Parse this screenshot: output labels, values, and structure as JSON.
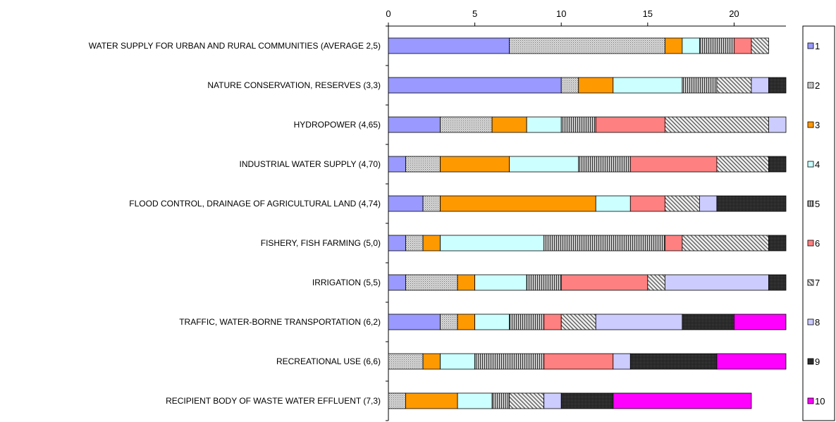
{
  "chart_data": {
    "type": "bar",
    "orientation": "horizontal",
    "stacked": true,
    "title": "",
    "xlabel": "",
    "ylabel": "",
    "xlim": [
      0,
      23
    ],
    "x_ticks": [
      0,
      5,
      10,
      15,
      20
    ],
    "grid": false,
    "legend_position": "right",
    "categories": [
      "WATER SUPPLY FOR URBAN AND RURAL COMMUNITIES (AVERAGE 2,5)",
      "NATURE CONSERVATION, RESERVES (3,3)",
      "HYDROPOWER (4,65)",
      "INDUSTRIAL WATER SUPPLY (4,70)",
      "FLOOD CONTROL, DRAINAGE OF AGRICULTURAL LAND (4,74)",
      "FISHERY, FISH FARMING (5,0)",
      "IRRIGATION (5,5)",
      "TRAFFIC, WATER-BORNE TRANSPORTATION (6,2)",
      "RECREATIONAL USE (6,6)",
      "RECIPIENT BODY OF WASTE WATER EFFLUENT (7,3)"
    ],
    "series": [
      {
        "name": "1",
        "color": "#9999ff",
        "pattern": "solid",
        "values": [
          7,
          10,
          3,
          1,
          2,
          1,
          1,
          3,
          0,
          0
        ]
      },
      {
        "name": "2",
        "color": "#c0c0c0",
        "pattern": "dots",
        "values": [
          9,
          1,
          3,
          2,
          1,
          1,
          3,
          1,
          2,
          1
        ]
      },
      {
        "name": "3",
        "color": "#ff9900",
        "pattern": "solid",
        "values": [
          1,
          2,
          2,
          4,
          9,
          1,
          1,
          1,
          1,
          3
        ]
      },
      {
        "name": "4",
        "color": "#ccffff",
        "pattern": "solid",
        "values": [
          1,
          4,
          2,
          4,
          2,
          6,
          3,
          2,
          2,
          2
        ]
      },
      {
        "name": "5",
        "color": "#c0c0c0",
        "pattern": "vlines",
        "values": [
          2,
          2,
          2,
          3,
          0,
          7,
          2,
          2,
          4,
          1
        ]
      },
      {
        "name": "6",
        "color": "#ff8080",
        "pattern": "solid",
        "values": [
          1,
          0,
          4,
          5,
          2,
          1,
          5,
          1,
          4,
          0
        ]
      },
      {
        "name": "7",
        "color": "#e0e0e0",
        "pattern": "diagonal",
        "values": [
          1,
          2,
          6,
          3,
          2,
          5,
          1,
          2,
          0,
          2
        ]
      },
      {
        "name": "8",
        "color": "#ccccff",
        "pattern": "solid",
        "values": [
          0,
          1,
          1,
          0,
          1,
          0,
          6,
          5,
          1,
          1
        ]
      },
      {
        "name": "9",
        "color": "#333333",
        "pattern": "dark",
        "values": [
          0,
          1,
          0,
          1,
          4,
          1,
          1,
          3,
          5,
          3
        ]
      },
      {
        "name": "10",
        "color": "#ff00ff",
        "pattern": "solid",
        "values": [
          0,
          0,
          0,
          0,
          0,
          0,
          0,
          3,
          4,
          8
        ]
      }
    ]
  }
}
